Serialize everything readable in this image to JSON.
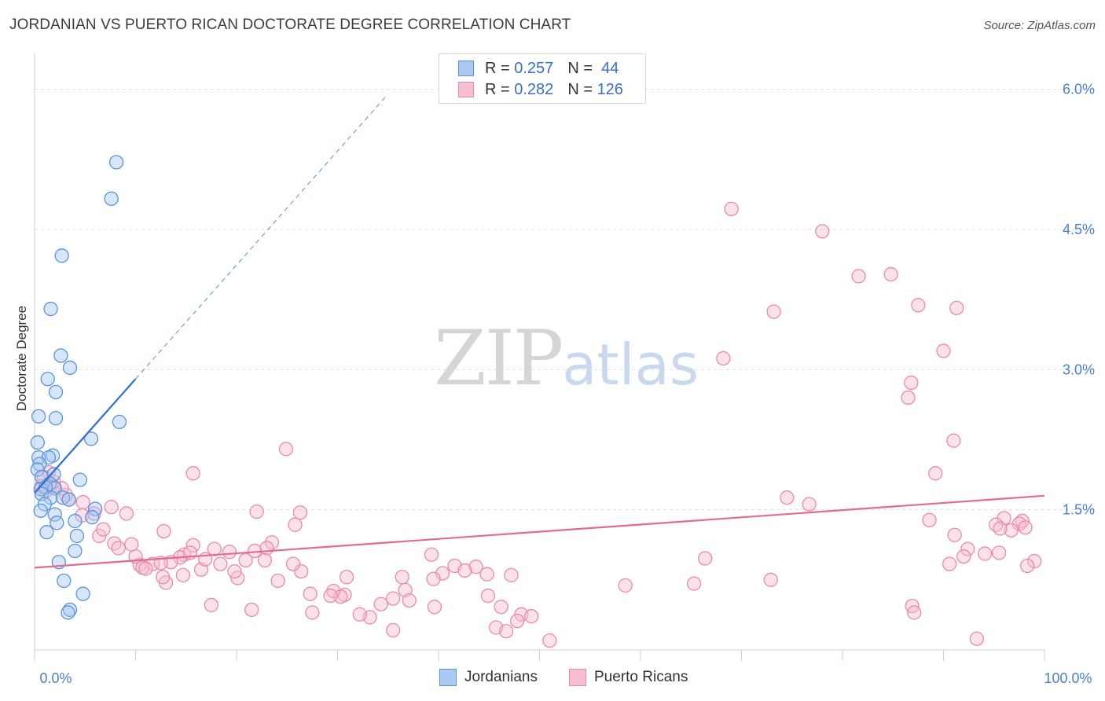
{
  "title": "JORDANIAN VS PUERTO RICAN DOCTORATE DEGREE CORRELATION CHART",
  "source": "Source: ZipAtlas.com",
  "watermark": {
    "zip": "ZIP",
    "atlas": "atlas"
  },
  "legend": {
    "rows": [
      {
        "r_label": "R =",
        "r_value": "0.257",
        "n_label": "N =",
        "n_value": "44"
      },
      {
        "r_label": "R =",
        "r_value": "0.282",
        "n_label": "N =",
        "n_value": "126"
      }
    ]
  },
  "bottom_legend": {
    "jordanians": "Jordanians",
    "puerto_ricans": "Puerto Ricans"
  },
  "colors": {
    "blue_fill": "#a9c8f2",
    "blue_stroke": "#5b93db",
    "blue_line": "#2f6fd0",
    "pink_fill": "#f7bdd0",
    "pink_stroke": "#e98aaa",
    "pink_line": "#e26a96",
    "tick_text": "#4a7fd0",
    "grid": "#dddddd"
  },
  "chart_data": {
    "type": "scatter",
    "title": "JORDANIAN VS PUERTO RICAN DOCTORATE DEGREE CORRELATION CHART",
    "xlabel": "",
    "ylabel": "Doctorate Degree",
    "xlim": [
      0,
      100
    ],
    "ylim": [
      0,
      6.3
    ],
    "x_tick_labels": [
      {
        "value": 0,
        "label": "0.0%"
      },
      {
        "value": 100,
        "label": "100.0%"
      }
    ],
    "y_tick_labels": [
      {
        "value": 1.5,
        "label": "1.5%"
      },
      {
        "value": 3.0,
        "label": "3.0%"
      },
      {
        "value": 4.5,
        "label": "4.5%"
      },
      {
        "value": 6.0,
        "label": "6.0%"
      }
    ],
    "series": [
      {
        "name": "Jordanians",
        "R": 0.257,
        "N": 44,
        "trend": {
          "x0": 0,
          "y0": 1.68,
          "x1": 10,
          "y1": 2.9,
          "dash_to_x": 35,
          "dash_to_y": 5.95
        },
        "points": [
          [
            8.1,
            5.22
          ],
          [
            7.6,
            4.83
          ],
          [
            2.7,
            4.22
          ],
          [
            1.6,
            3.65
          ],
          [
            2.6,
            3.15
          ],
          [
            3.5,
            3.02
          ],
          [
            1.3,
            2.9
          ],
          [
            2.1,
            2.76
          ],
          [
            0.4,
            2.5
          ],
          [
            2.1,
            2.48
          ],
          [
            8.4,
            2.44
          ],
          [
            0.3,
            2.22
          ],
          [
            5.6,
            2.26
          ],
          [
            0.4,
            2.06
          ],
          [
            1.8,
            2.08
          ],
          [
            1.4,
            2.06
          ],
          [
            0.5,
            1.99
          ],
          [
            0.3,
            1.93
          ],
          [
            1.9,
            1.88
          ],
          [
            0.7,
            1.85
          ],
          [
            4.5,
            1.82
          ],
          [
            1.5,
            1.78
          ],
          [
            2.0,
            1.73
          ],
          [
            0.6,
            1.72
          ],
          [
            1.1,
            1.74
          ],
          [
            0.7,
            1.67
          ],
          [
            1.6,
            1.63
          ],
          [
            2.8,
            1.63
          ],
          [
            3.4,
            1.61
          ],
          [
            1.0,
            1.56
          ],
          [
            6.0,
            1.51
          ],
          [
            0.6,
            1.49
          ],
          [
            2.0,
            1.45
          ],
          [
            5.7,
            1.42
          ],
          [
            4.0,
            1.38
          ],
          [
            2.2,
            1.36
          ],
          [
            1.2,
            1.26
          ],
          [
            4.2,
            1.22
          ],
          [
            4.0,
            1.06
          ],
          [
            2.4,
            0.94
          ],
          [
            2.9,
            0.74
          ],
          [
            4.8,
            0.6
          ],
          [
            3.5,
            0.43
          ],
          [
            3.3,
            0.4
          ]
        ]
      },
      {
        "name": "Puerto Ricans",
        "R": 0.282,
        "N": 126,
        "trend": {
          "x0": 0,
          "y0": 0.88,
          "x1": 100,
          "y1": 1.65
        },
        "points": [
          [
            69.0,
            4.72
          ],
          [
            78.0,
            4.48
          ],
          [
            81.6,
            4.0
          ],
          [
            84.8,
            4.02
          ],
          [
            73.2,
            3.62
          ],
          [
            87.5,
            3.69
          ],
          [
            91.3,
            3.66
          ],
          [
            68.2,
            3.12
          ],
          [
            90.0,
            3.2
          ],
          [
            86.8,
            2.86
          ],
          [
            86.5,
            2.7
          ],
          [
            91.0,
            2.24
          ],
          [
            24.9,
            2.15
          ],
          [
            15.7,
            1.89
          ],
          [
            89.2,
            1.89
          ],
          [
            74.5,
            1.63
          ],
          [
            76.7,
            1.56
          ],
          [
            88.6,
            1.39
          ],
          [
            96.0,
            1.41
          ],
          [
            97.8,
            1.38
          ],
          [
            95.2,
            1.34
          ],
          [
            97.5,
            1.35
          ],
          [
            98.1,
            1.31
          ],
          [
            96.7,
            1.28
          ],
          [
            95.6,
            1.3
          ],
          [
            91.1,
            1.23
          ],
          [
            92.4,
            1.08
          ],
          [
            94.1,
            1.03
          ],
          [
            92.0,
            1.0
          ],
          [
            95.5,
            1.04
          ],
          [
            99.0,
            0.95
          ],
          [
            98.3,
            0.9
          ],
          [
            90.6,
            0.92
          ],
          [
            66.4,
            0.98
          ],
          [
            72.9,
            0.75
          ],
          [
            65.3,
            0.71
          ],
          [
            58.5,
            0.69
          ],
          [
            47.2,
            0.8
          ],
          [
            39.3,
            1.02
          ],
          [
            40.4,
            0.82
          ],
          [
            36.4,
            0.78
          ],
          [
            36.7,
            0.64
          ],
          [
            37.1,
            0.53
          ],
          [
            39.6,
            0.46
          ],
          [
            41.6,
            0.9
          ],
          [
            43.7,
            0.89
          ],
          [
            42.6,
            0.85
          ],
          [
            39.5,
            0.76
          ],
          [
            44.8,
            0.81
          ],
          [
            44.9,
            0.58
          ],
          [
            46.2,
            0.46
          ],
          [
            45.7,
            0.24
          ],
          [
            46.7,
            0.2
          ],
          [
            48.2,
            0.38
          ],
          [
            49.2,
            0.36
          ],
          [
            47.8,
            0.31
          ],
          [
            51.0,
            0.1
          ],
          [
            35.5,
            0.55
          ],
          [
            34.3,
            0.49
          ],
          [
            33.2,
            0.35
          ],
          [
            35.5,
            0.21
          ],
          [
            30.7,
            0.59
          ],
          [
            29.6,
            0.63
          ],
          [
            30.3,
            0.57
          ],
          [
            29.3,
            0.58
          ],
          [
            27.3,
            0.6
          ],
          [
            27.5,
            0.4
          ],
          [
            26.4,
            0.84
          ],
          [
            25.6,
            0.92
          ],
          [
            24.1,
            0.74
          ],
          [
            23.5,
            1.15
          ],
          [
            23.0,
            1.09
          ],
          [
            20.9,
            0.96
          ],
          [
            20.1,
            0.77
          ],
          [
            19.8,
            0.84
          ],
          [
            19.3,
            1.05
          ],
          [
            17.8,
            1.08
          ],
          [
            18.4,
            0.92
          ],
          [
            16.5,
            0.86
          ],
          [
            16.9,
            0.97
          ],
          [
            15.7,
            1.12
          ],
          [
            14.8,
            1.02
          ],
          [
            14.4,
            0.99
          ],
          [
            14.7,
            0.8
          ],
          [
            13.5,
            0.94
          ],
          [
            13.0,
            0.72
          ],
          [
            12.7,
            0.78
          ],
          [
            11.7,
            0.92
          ],
          [
            10.4,
            0.91
          ],
          [
            10.7,
            0.88
          ],
          [
            12.5,
            0.93
          ],
          [
            11.0,
            0.87
          ],
          [
            10.0,
            1.0
          ],
          [
            9.6,
            1.13
          ],
          [
            7.9,
            1.14
          ],
          [
            8.3,
            1.09
          ],
          [
            9.1,
            1.46
          ],
          [
            7.6,
            1.53
          ],
          [
            12.8,
            1.27
          ],
          [
            17.5,
            0.48
          ],
          [
            21.5,
            0.43
          ],
          [
            26.3,
            1.47
          ],
          [
            25.8,
            1.34
          ],
          [
            21.8,
            1.06
          ],
          [
            22.8,
            0.96
          ],
          [
            22.0,
            1.48
          ],
          [
            30.9,
            0.78
          ],
          [
            32.2,
            0.38
          ],
          [
            15.4,
            1.04
          ],
          [
            6.4,
            1.22
          ],
          [
            6.8,
            1.29
          ],
          [
            5.9,
            1.46
          ],
          [
            4.7,
            1.44
          ],
          [
            4.8,
            1.58
          ],
          [
            3.4,
            1.61
          ],
          [
            3.1,
            1.66
          ],
          [
            2.7,
            1.73
          ],
          [
            1.9,
            1.75
          ],
          [
            1.4,
            1.9
          ],
          [
            0.9,
            1.85
          ],
          [
            0.7,
            1.75
          ],
          [
            1.9,
            1.8
          ],
          [
            1.1,
            1.7
          ],
          [
            86.9,
            0.47
          ],
          [
            87.1,
            0.4
          ],
          [
            93.3,
            0.12
          ]
        ]
      }
    ]
  }
}
